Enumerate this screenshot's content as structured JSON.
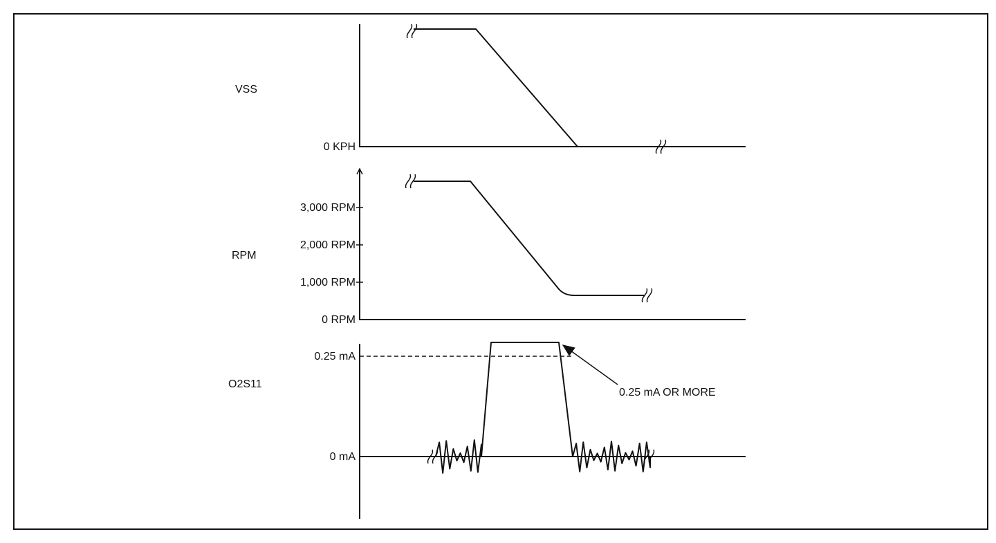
{
  "panels": [
    {
      "label": "VSS",
      "ticks": [
        "0 KPH"
      ]
    },
    {
      "label": "RPM",
      "ticks": [
        "3,000 RPM",
        "2,000 RPM",
        "1,000 RPM",
        "0 RPM"
      ]
    },
    {
      "label": "O2S11",
      "ticks": [
        "0.25 mA",
        "0 mA"
      ]
    }
  ],
  "annotation": "0.25 mA OR MORE"
}
